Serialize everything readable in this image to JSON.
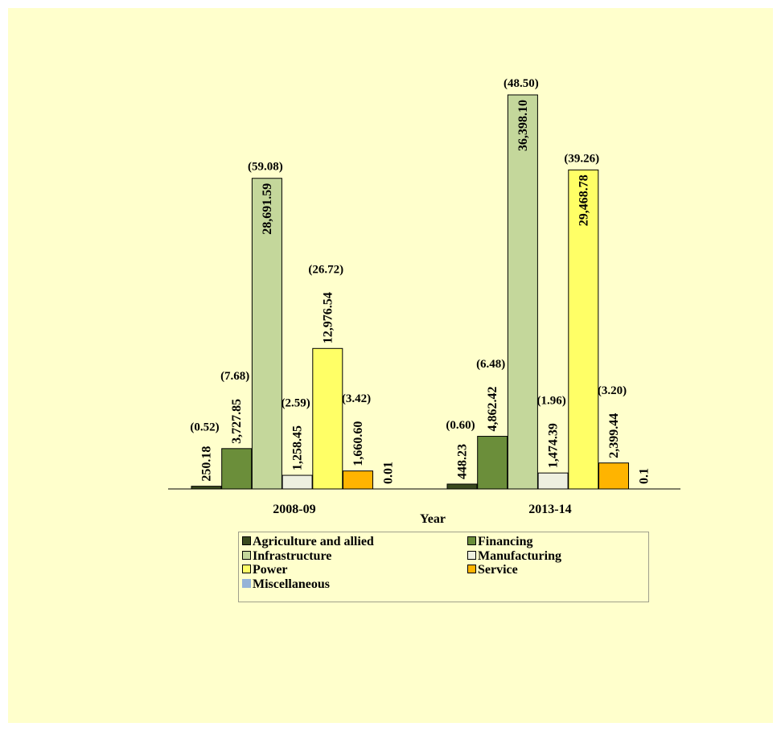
{
  "chart_data": {
    "type": "bar",
    "categories": [
      "2008-09",
      "2013-14"
    ],
    "xlabel": "Year",
    "ylim": [
      0,
      38000
    ],
    "series": [
      {
        "name": "Agriculture and allied",
        "color": "#3a4a1e",
        "values": [
          250.18,
          448.23
        ],
        "value_labels": [
          "250.18",
          "448.23"
        ],
        "share_labels": [
          "(0.52)",
          "(0.60)"
        ]
      },
      {
        "name": "Financing",
        "color": "#6b8e3a",
        "values": [
          3727.85,
          4862.42
        ],
        "value_labels": [
          "3,727.85",
          "4,862.42"
        ],
        "share_labels": [
          "(7.68)",
          "(6.48)"
        ]
      },
      {
        "name": "Infrastructure",
        "color": "#c4d79b",
        "values": [
          28691.59,
          36398.1
        ],
        "value_labels": [
          "28,691.59",
          "36,398.10"
        ],
        "share_labels": [
          "(59.08)",
          "(48.50)"
        ]
      },
      {
        "name": "Manufacturing",
        "color": "#eef0e0",
        "values": [
          1258.45,
          1474.39
        ],
        "value_labels": [
          "1,258.45",
          "1,474.39"
        ],
        "share_labels": [
          "(2.59)",
          "(1.96)"
        ]
      },
      {
        "name": "Power",
        "color": "#ffff66",
        "values": [
          12976.54,
          29468.78
        ],
        "value_labels": [
          "12,976.54",
          "29,468.78"
        ],
        "share_labels": [
          "(26.72)",
          "(39.26)"
        ]
      },
      {
        "name": "Service",
        "color": "#ffb400",
        "values": [
          1660.6,
          2399.44
        ],
        "value_labels": [
          "1,660.60",
          "2,399.44"
        ],
        "share_labels": [
          "(3.42)",
          "(3.20)"
        ]
      },
      {
        "name": "Miscellaneous",
        "color": "#95b3d7",
        "values": [
          0.01,
          0.1
        ],
        "value_labels": [
          "0.01",
          "0.1"
        ],
        "share_labels": [
          "",
          ""
        ]
      }
    ]
  }
}
